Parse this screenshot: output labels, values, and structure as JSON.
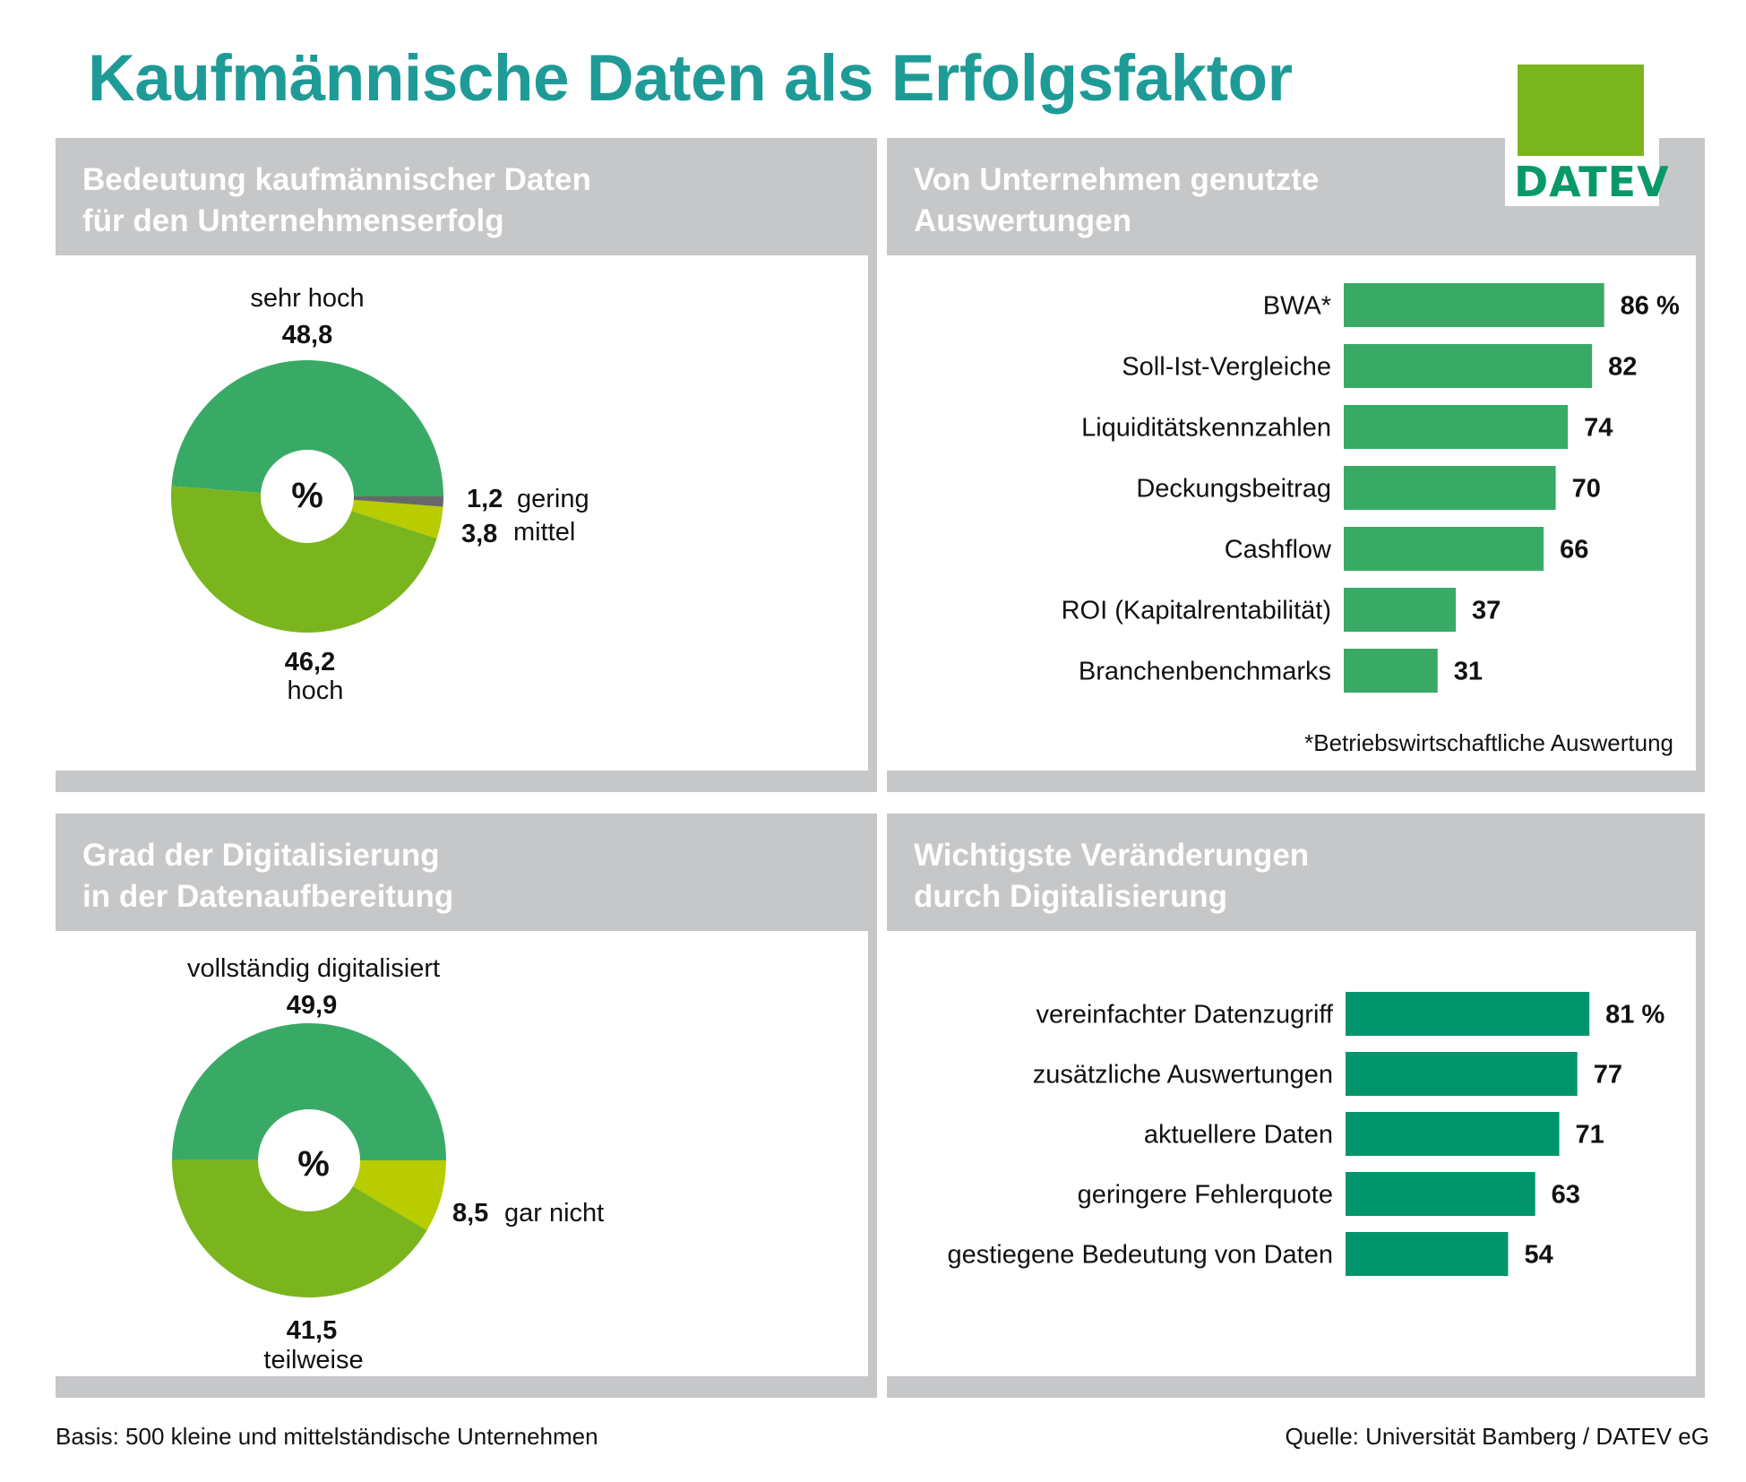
{
  "title": "Kaufmännische Daten als Erfolgsfaktor",
  "logo": {
    "text": "DATEV",
    "square_color": "#7ab51d",
    "text_color": "#079a68"
  },
  "colors": {
    "title": "#1f9b97",
    "panel_frame": "#c6c7c9",
    "bar_green_1": "#39aa66",
    "bar_green_2": "#00956b",
    "donut_dark_green": "#39aa66",
    "donut_green": "#7ab51d",
    "donut_yellow_green": "#b8cc00",
    "donut_gray": "#68686a"
  },
  "panels": [
    {
      "title": "Bedeutung kaufmännischer Daten\nfür den Unternehmenserfolg"
    },
    {
      "title": "Von Unternehmen genutzte\nAuswertungen"
    },
    {
      "title": "Grad der Digitalisierung\nin der Datenaufbereitung"
    },
    {
      "title": "Wichtigste Veränderungen\ndurch Digitalisierung"
    }
  ],
  "footer": {
    "basis": "Basis: 500 kleine und mittelständische Unternehmen",
    "source": "Quelle: Universität Bamberg / DATEV eG"
  },
  "chart_data": [
    {
      "type": "pie",
      "variant": "donut",
      "title": "Bedeutung kaufmännischer Daten für den Unternehmenserfolg",
      "unit": "%",
      "center_label": "%",
      "slices": [
        {
          "label": "sehr hoch",
          "value": 48.8,
          "value_text": "48,8",
          "color": "#39aa66"
        },
        {
          "label": "hoch",
          "value": 46.2,
          "value_text": "46,2",
          "color": "#7ab51d"
        },
        {
          "label": "mittel",
          "value": 3.8,
          "value_text": "3,8",
          "color": "#b8cc00"
        },
        {
          "label": "gering",
          "value": 1.2,
          "value_text": "1,2",
          "color": "#68686a"
        }
      ]
    },
    {
      "type": "bar",
      "orientation": "horizontal",
      "title": "Von Unternehmen genutzte Auswertungen",
      "unit": "%",
      "categories": [
        "BWA*",
        "Soll-Ist-Vergleiche",
        "Liquiditätskennzahlen",
        "Deckungsbeitrag",
        "Cashflow",
        "ROI (Kapitalrentabilität)",
        "Branchenbenchmarks"
      ],
      "values": [
        86,
        82,
        74,
        70,
        66,
        37,
        31
      ],
      "value_labels": [
        "86 %",
        "82",
        "74",
        "70",
        "66",
        "37",
        "31"
      ],
      "xlim": [
        0,
        100
      ],
      "color": "#39aa66",
      "footnote": "*Betriebswirtschaftliche Auswertung"
    },
    {
      "type": "pie",
      "variant": "donut",
      "title": "Grad der Digitalisierung in der Datenaufbereitung",
      "unit": "%",
      "center_label": "%",
      "slices": [
        {
          "label": "vollständig digitalisiert",
          "value": 49.9,
          "value_text": "49,9",
          "color": "#39aa66"
        },
        {
          "label": "teilweise",
          "value": 41.5,
          "value_text": "41,5",
          "color": "#7ab51d"
        },
        {
          "label": "gar nicht",
          "value": 8.5,
          "value_text": "8,5",
          "color": "#b8cc00"
        }
      ]
    },
    {
      "type": "bar",
      "orientation": "horizontal",
      "title": "Wichtigste Veränderungen durch Digitalisierung",
      "unit": "%",
      "categories": [
        "vereinfachter Datenzugriff",
        "zusätzliche Auswertungen",
        "aktuellere Daten",
        "geringere Fehlerquote",
        "gestiegene Bedeutung von Daten"
      ],
      "values": [
        81,
        77,
        71,
        63,
        54
      ],
      "value_labels": [
        "81 %",
        "77",
        "71",
        "63",
        "54"
      ],
      "xlim": [
        0,
        100
      ],
      "color": "#00956b"
    }
  ]
}
